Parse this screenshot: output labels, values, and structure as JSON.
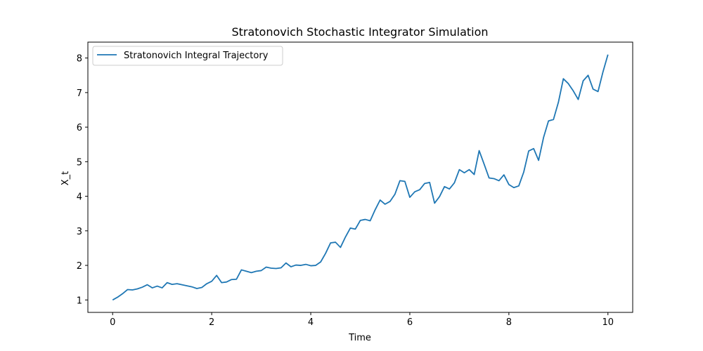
{
  "chart_data": {
    "type": "line",
    "title": "Stratonovich Stochastic Integrator Simulation",
    "xlabel": "Time",
    "ylabel": "X_t",
    "xlim": [
      -0.5,
      10.5
    ],
    "ylim": [
      0.64,
      8.46
    ],
    "xticks": [
      0,
      2,
      4,
      6,
      8,
      10
    ],
    "yticks": [
      1,
      2,
      3,
      4,
      5,
      6,
      7,
      8
    ],
    "grid": false,
    "legend": {
      "placement": "top-left"
    },
    "series": [
      {
        "name": "Stratonovich Integral Trajectory",
        "color": "#1f77b4",
        "x": [
          0.0,
          0.1,
          0.2,
          0.3,
          0.4,
          0.5,
          0.6,
          0.7,
          0.8,
          0.9,
          1.0,
          1.1,
          1.2,
          1.3,
          1.4,
          1.5,
          1.6,
          1.7,
          1.8,
          1.9,
          2.0,
          2.1,
          2.2,
          2.3,
          2.4,
          2.5,
          2.6,
          2.7,
          2.8,
          2.9,
          3.0,
          3.1,
          3.2,
          3.3,
          3.4,
          3.5,
          3.6,
          3.7,
          3.8,
          3.9,
          4.0,
          4.1,
          4.2,
          4.3,
          4.4,
          4.5,
          4.6,
          4.7,
          4.8,
          4.9,
          5.0,
          5.1,
          5.2,
          5.3,
          5.4,
          5.5,
          5.6,
          5.7,
          5.8,
          5.9,
          6.0,
          6.1,
          6.2,
          6.3,
          6.4,
          6.5,
          6.6,
          6.7,
          6.8,
          6.9,
          7.0,
          7.1,
          7.2,
          7.3,
          7.4,
          7.5,
          7.6,
          7.7,
          7.8,
          7.9,
          8.0,
          8.1,
          8.2,
          8.3,
          8.4,
          8.5,
          8.6,
          8.7,
          8.8,
          8.9,
          9.0,
          9.1,
          9.2,
          9.3,
          9.4,
          9.5,
          9.6,
          9.7,
          9.8,
          9.9,
          10.0
        ],
        "y": [
          1.0,
          1.08,
          1.18,
          1.3,
          1.29,
          1.32,
          1.37,
          1.44,
          1.35,
          1.4,
          1.35,
          1.5,
          1.45,
          1.47,
          1.44,
          1.41,
          1.38,
          1.33,
          1.36,
          1.47,
          1.54,
          1.71,
          1.5,
          1.52,
          1.59,
          1.6,
          1.87,
          1.83,
          1.79,
          1.83,
          1.85,
          1.95,
          1.92,
          1.91,
          1.93,
          2.07,
          1.96,
          2.01,
          2.0,
          2.03,
          1.99,
          2.0,
          2.1,
          2.35,
          2.65,
          2.67,
          2.52,
          2.82,
          3.08,
          3.05,
          3.3,
          3.33,
          3.29,
          3.61,
          3.89,
          3.77,
          3.85,
          4.06,
          4.45,
          4.43,
          3.97,
          4.13,
          4.19,
          4.37,
          4.4,
          3.8,
          3.99,
          4.28,
          4.21,
          4.39,
          4.77,
          4.68,
          4.77,
          4.63,
          5.32,
          4.93,
          4.53,
          4.51,
          4.45,
          4.62,
          4.34,
          4.25,
          4.3,
          4.7,
          5.31,
          5.38,
          5.04,
          5.7,
          6.18,
          6.22,
          6.72,
          7.4,
          7.26,
          7.05,
          6.8,
          7.34,
          7.5,
          7.1,
          7.03,
          7.6,
          8.1
        ]
      }
    ]
  }
}
